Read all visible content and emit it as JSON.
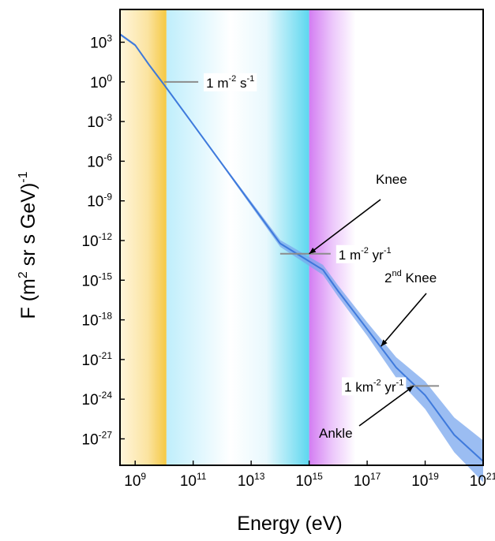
{
  "chart_data": {
    "type": "line",
    "title": "",
    "xlabel": "Energy (eV)",
    "ylabel": "F (m2 sr s GeV)-1",
    "x_scale": "log",
    "y_scale": "log",
    "xlim": [
      300000000.0,
      1e+21
    ],
    "ylim": [
      1e-29,
      300000.0
    ],
    "x_ticks": [
      {
        "base": "10",
        "exp": "9",
        "value": 1000000000.0
      },
      {
        "base": "10",
        "exp": "11",
        "value": 100000000000.0
      },
      {
        "base": "10",
        "exp": "13",
        "value": 10000000000000.0
      },
      {
        "base": "10",
        "exp": "15",
        "value": 1000000000000000.0
      },
      {
        "base": "10",
        "exp": "17",
        "value": 1e+17
      },
      {
        "base": "10",
        "exp": "19",
        "value": 1e+19
      },
      {
        "base": "10",
        "exp": "21",
        "value": 1e+21
      }
    ],
    "y_ticks": [
      {
        "base": "10",
        "exp": "3",
        "value": 1000.0
      },
      {
        "base": "10",
        "exp": "0",
        "value": 1.0
      },
      {
        "base": "10",
        "exp": "-3",
        "value": 0.001
      },
      {
        "base": "10",
        "exp": "-6",
        "value": 1e-06
      },
      {
        "base": "10",
        "exp": "-9",
        "value": 1e-09
      },
      {
        "base": "10",
        "exp": "-12",
        "value": 1e-12
      },
      {
        "base": "10",
        "exp": "-15",
        "value": 1e-15
      },
      {
        "base": "10",
        "exp": "-18",
        "value": 1e-18
      },
      {
        "base": "10",
        "exp": "-21",
        "value": 1e-21
      },
      {
        "base": "10",
        "exp": "-24",
        "value": 1e-24
      },
      {
        "base": "10",
        "exp": "-27",
        "value": 1e-27
      }
    ],
    "series": [
      {
        "color": "#2f6fd8",
        "points": [
          [
            300000000.0,
            4000
          ],
          [
            1000000000.0,
            600
          ],
          [
            3000000000.0,
            20
          ],
          [
            10000000000.0,
            0.6
          ],
          [
            100000000000.0,
            0.0006
          ],
          [
            1000000000000.0,
            6e-07
          ],
          [
            10000000000000.0,
            6e-10
          ],
          [
            100000000000000.0,
            6e-13
          ],
          [
            3000000000000000.0,
            6e-15
          ],
          [
            1e+16,
            1.5e-16
          ],
          [
            1e+17,
            2e-19
          ],
          [
            1e+18,
            2.5e-22
          ],
          [
            1e+19,
            2e-24
          ],
          [
            1e+20,
            2e-27
          ],
          [
            1e+21,
            2e-29
          ]
        ]
      }
    ],
    "bands": [
      {
        "from": 300000000.0,
        "to": 12000000000.0,
        "color": "#f5c842"
      },
      {
        "from": 12000000000.0,
        "to": 1000000000000000.0,
        "color": "#4fd3e6"
      },
      {
        "from": 1000000000000000.0,
        "to": 4e+16,
        "color": "#d58bf2"
      }
    ],
    "annotations": [
      {
        "text": "1 m",
        "sup": "-2",
        "text2": " s",
        "sup2": "-1",
        "x_from": 10000000000.0,
        "x_to": 150000000000.0,
        "y": 1.0
      },
      {
        "text": "1 m",
        "sup": "-2",
        "text2": " yr",
        "sup2": "-1",
        "x_from": 100000000000000.0,
        "x_to": 5500000000000000.0,
        "y": 1e-13
      },
      {
        "text": "1 km",
        "sup": "-2",
        "text2": " yr",
        "sup2": "-1",
        "x_from": 3e+18,
        "x_to": 3e+19,
        "y": 1e-23
      }
    ],
    "callouts": [
      {
        "text": "Knee",
        "sup": "",
        "text2": "",
        "target": [
          1000000000000000.0,
          1e-13
        ]
      },
      {
        "text": "2",
        "sup": "nd",
        "text2": " Knee",
        "target": [
          3e+17,
          1e-20
        ]
      },
      {
        "text": "Ankle",
        "sup": "",
        "text2": "",
        "target": [
          4e+18,
          1e-23
        ]
      }
    ],
    "grid": false,
    "legend": "none"
  }
}
